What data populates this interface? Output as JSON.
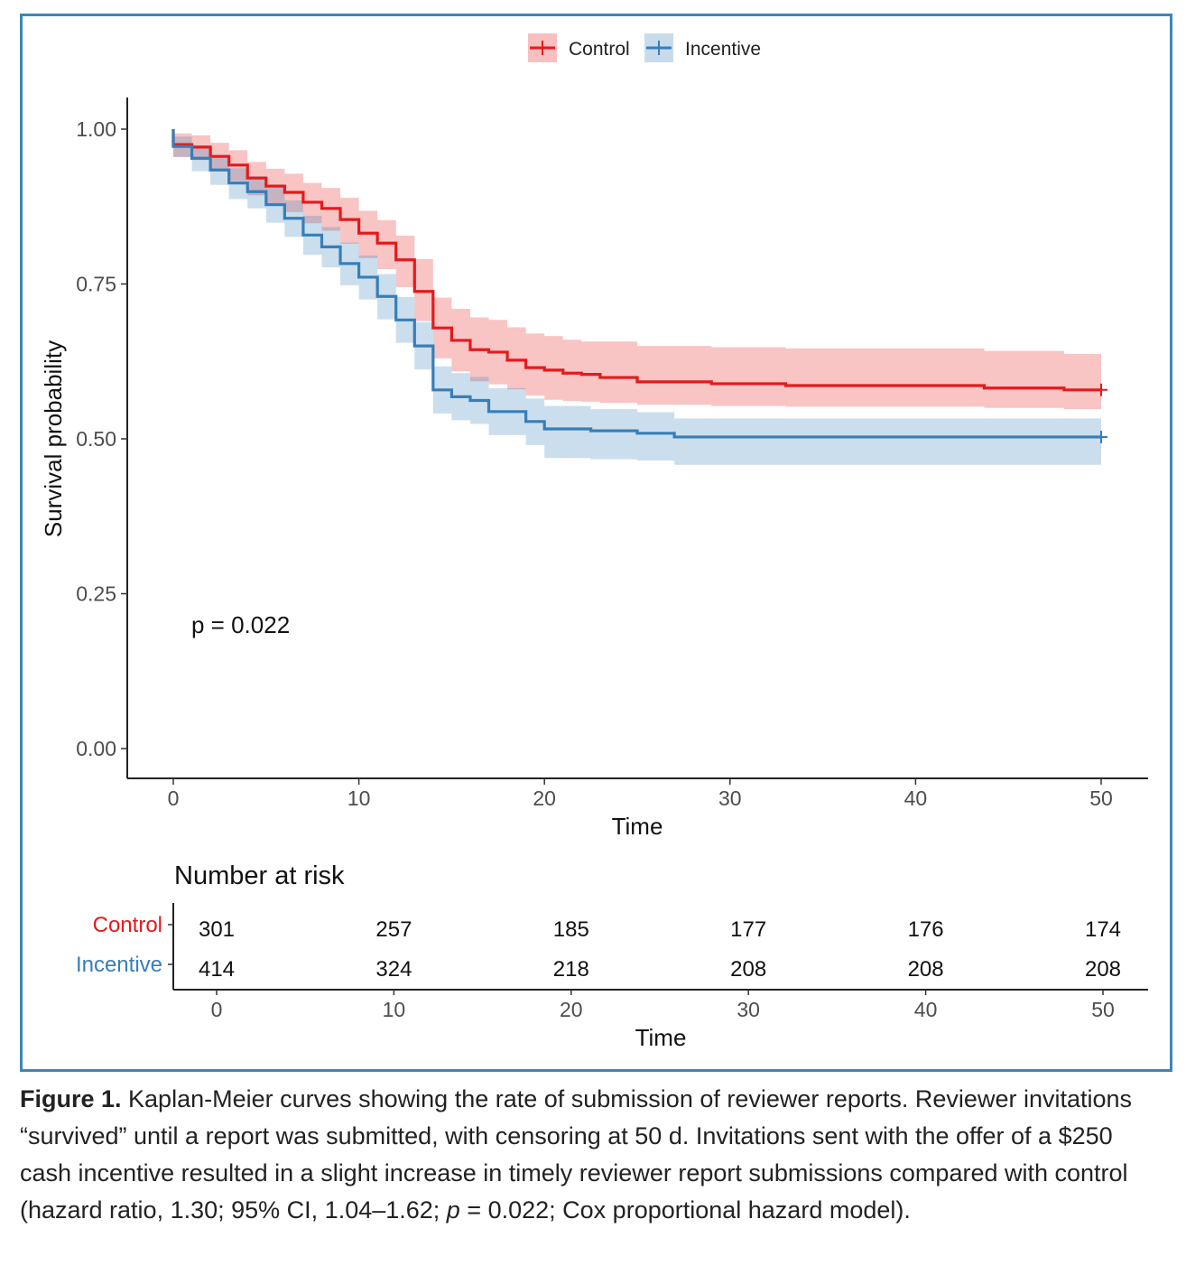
{
  "chart_data": {
    "type": "line",
    "subtype": "kaplan-meier step",
    "xlabel": "Time",
    "ylabel": "Survival probability",
    "xlim": [
      0,
      50
    ],
    "ylim": [
      0,
      1
    ],
    "x_ticks": [
      "0",
      "10",
      "20",
      "30",
      "40",
      "50"
    ],
    "y_ticks": [
      "0.00",
      "0.25",
      "0.50",
      "0.75",
      "1.00"
    ],
    "grid": false,
    "legend_placement": "top-center",
    "annotation": "p = 0.022",
    "series": [
      {
        "name": "Control",
        "color": "#e41a1c",
        "time": [
          0,
          1,
          2,
          3,
          4,
          5,
          6,
          7,
          8,
          9,
          10,
          11,
          12,
          13,
          14,
          15,
          16,
          17,
          18,
          19,
          20,
          21,
          22,
          23,
          25,
          29,
          33,
          43.7,
          48
        ],
        "survival": [
          0.975,
          0.971,
          0.956,
          0.942,
          0.921,
          0.908,
          0.898,
          0.882,
          0.872,
          0.854,
          0.832,
          0.816,
          0.789,
          0.738,
          0.679,
          0.659,
          0.644,
          0.64,
          0.627,
          0.615,
          0.611,
          0.606,
          0.604,
          0.599,
          0.592,
          0.589,
          0.586,
          0.582,
          0.579
        ],
        "upper": [
          0.993,
          0.99,
          0.978,
          0.966,
          0.947,
          0.936,
          0.928,
          0.913,
          0.905,
          0.889,
          0.868,
          0.853,
          0.828,
          0.79,
          0.728,
          0.71,
          0.696,
          0.692,
          0.68,
          0.67,
          0.666,
          0.66,
          0.657,
          0.657,
          0.65,
          0.648,
          0.646,
          0.642,
          0.637
        ],
        "lower": [
          0.955,
          0.95,
          0.932,
          0.916,
          0.893,
          0.878,
          0.866,
          0.848,
          0.836,
          0.815,
          0.792,
          0.774,
          0.745,
          0.69,
          0.63,
          0.609,
          0.593,
          0.588,
          0.58,
          0.57,
          0.563,
          0.561,
          0.56,
          0.558,
          0.555,
          0.553,
          0.552,
          0.55,
          0.548
        ],
        "censor_time": 50
      },
      {
        "name": "Incentive",
        "color": "#377eb8",
        "time": [
          0,
          1,
          2,
          3,
          4,
          5,
          6,
          7,
          8,
          9,
          10,
          11,
          12,
          13,
          14,
          15,
          16,
          17,
          19,
          20,
          22.5,
          25,
          27
        ],
        "survival": [
          0.972,
          0.953,
          0.934,
          0.913,
          0.899,
          0.878,
          0.856,
          0.829,
          0.81,
          0.783,
          0.761,
          0.73,
          0.692,
          0.65,
          0.579,
          0.568,
          0.562,
          0.544,
          0.528,
          0.516,
          0.513,
          0.509,
          0.503
        ],
        "upper": [
          0.988,
          0.972,
          0.955,
          0.937,
          0.924,
          0.905,
          0.885,
          0.86,
          0.842,
          0.817,
          0.796,
          0.766,
          0.729,
          0.688,
          0.617,
          0.606,
          0.6,
          0.582,
          0.565,
          0.553,
          0.548,
          0.543,
          0.533
        ],
        "lower": [
          0.955,
          0.932,
          0.91,
          0.887,
          0.872,
          0.849,
          0.826,
          0.797,
          0.777,
          0.748,
          0.725,
          0.693,
          0.655,
          0.612,
          0.541,
          0.53,
          0.524,
          0.506,
          0.49,
          0.469,
          0.467,
          0.465,
          0.458
        ],
        "censor_time": 50
      }
    ],
    "risk_table": {
      "title": "Number at risk",
      "xlabel": "Time",
      "x_ticks": [
        "0",
        "10",
        "20",
        "30",
        "40",
        "50"
      ],
      "rows": [
        {
          "label": "Control",
          "color": "#e41a1c",
          "values": [
            "301",
            "257",
            "185",
            "177",
            "176",
            "174"
          ]
        },
        {
          "label": "Incentive",
          "color": "#377eb8",
          "values": [
            "414",
            "324",
            "218",
            "208",
            "208",
            "208"
          ]
        }
      ]
    }
  },
  "caption": {
    "label": "Figure 1.",
    "text_1": " Kaplan-Meier curves showing the rate of submission of reviewer reports. Reviewer invitations “survived” until a report was submitted, with censoring at 50 d. Invitations sent with the offer of a $250 cash incentive resulted in a slight increase in timely reviewer report submissions compared with control (hazard ratio, 1.30; 95% CI, 1.04–1.62; ",
    "p_symbol": "p",
    "text_2": " = 0.022; Cox proportional hazard model)."
  }
}
